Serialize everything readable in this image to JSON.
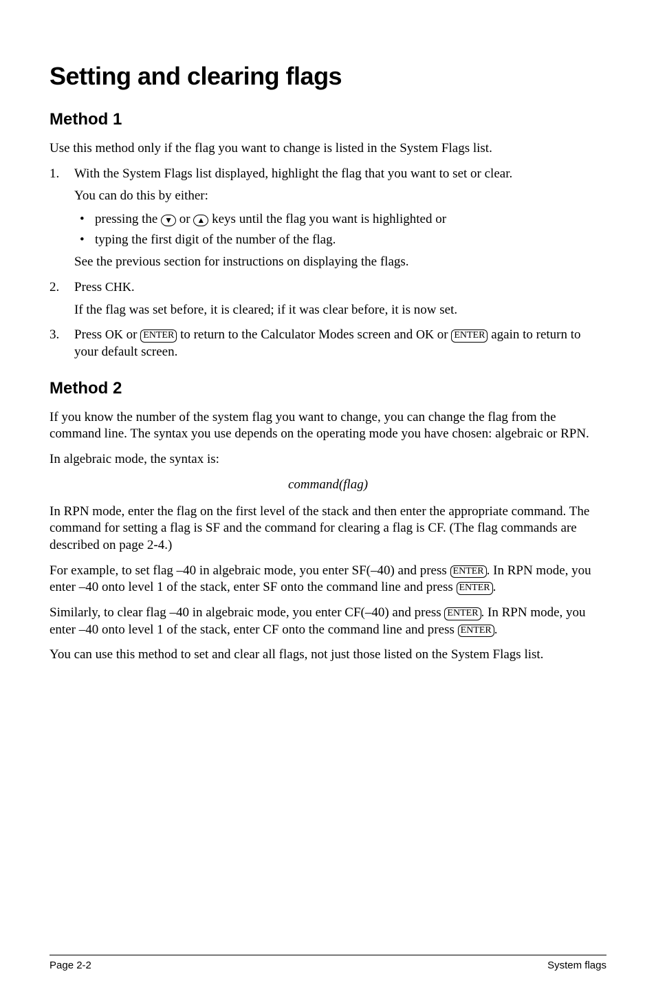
{
  "title": "Setting and clearing flags",
  "method1": {
    "heading": "Method 1",
    "intro": "Use this method only if the flag you want to change is listed in the System Flags list.",
    "steps": {
      "s1": {
        "main": "With the System Flags list displayed, highlight the flag that you want to set or clear.",
        "sub1": "You can do this by either:",
        "bullet1_pre": "pressing the ",
        "bullet1_mid": " or ",
        "bullet1_post": " keys until the flag you want is highlighted or",
        "bullet2": "typing the first digit of the number of the flag.",
        "sub2": "See the previous section for instructions on displaying the flags."
      },
      "s2": {
        "pre": "Press ",
        "chk": "CHK",
        "post": ".",
        "sub": "If the flag was set before, it is cleared; if it was clear before, it is now set."
      },
      "s3": {
        "pre": "Press ",
        "ok1": "OK",
        "mid1": " or ",
        "enter1": "ENTER",
        "mid2": " to return to the Calculator Modes screen and ",
        "ok2": "OK",
        "mid3": " or ",
        "enter2": "ENTER",
        "post": " again to return to your default screen."
      }
    }
  },
  "method2": {
    "heading": "Method 2",
    "p1": "If you know the number of the system flag you want to change, you can change the flag from the command line. The syntax you use depends on the operating mode you have chosen: algebraic or RPN.",
    "p2": "In algebraic mode, the syntax is:",
    "syntax": "command(flag)",
    "p3": "In RPN mode, enter the flag on the first level of the stack and then enter the appropriate command. The command for setting a flag is SF and the command for clearing a flag is CF. (The flag commands are described on page 2-4.)",
    "p4_pre": "For example, to set flag –40 in algebraic mode, you enter SF(–40) and press ",
    "p4_enter1": "ENTER",
    "p4_mid": ". In RPN mode, you enter –40 onto level 1 of the stack, enter SF onto the command line and press ",
    "p4_enter2": "ENTER",
    "p4_post": ".",
    "p5_pre": "Similarly, to clear flag –40 in algebraic mode, you enter CF(–40) and press ",
    "p5_enter1": "ENTER",
    "p5_mid": ". In RPN mode, you enter –40 onto level 1 of the stack, enter CF onto the command line and press ",
    "p5_enter2": "ENTER",
    "p5_post": ".",
    "p6": "You can use this method to set and clear all flags, not just those listed on the System Flags list."
  },
  "arrow_down": "▼",
  "arrow_up": "▲",
  "footer": {
    "left": "Page 2-2",
    "right": "System flags"
  },
  "styles": {
    "body_font_size": 19,
    "h1_font_size": 36,
    "h2_font_size": 24,
    "footer_font_size": 15,
    "text_color": "#000000",
    "background_color": "#ffffff"
  }
}
